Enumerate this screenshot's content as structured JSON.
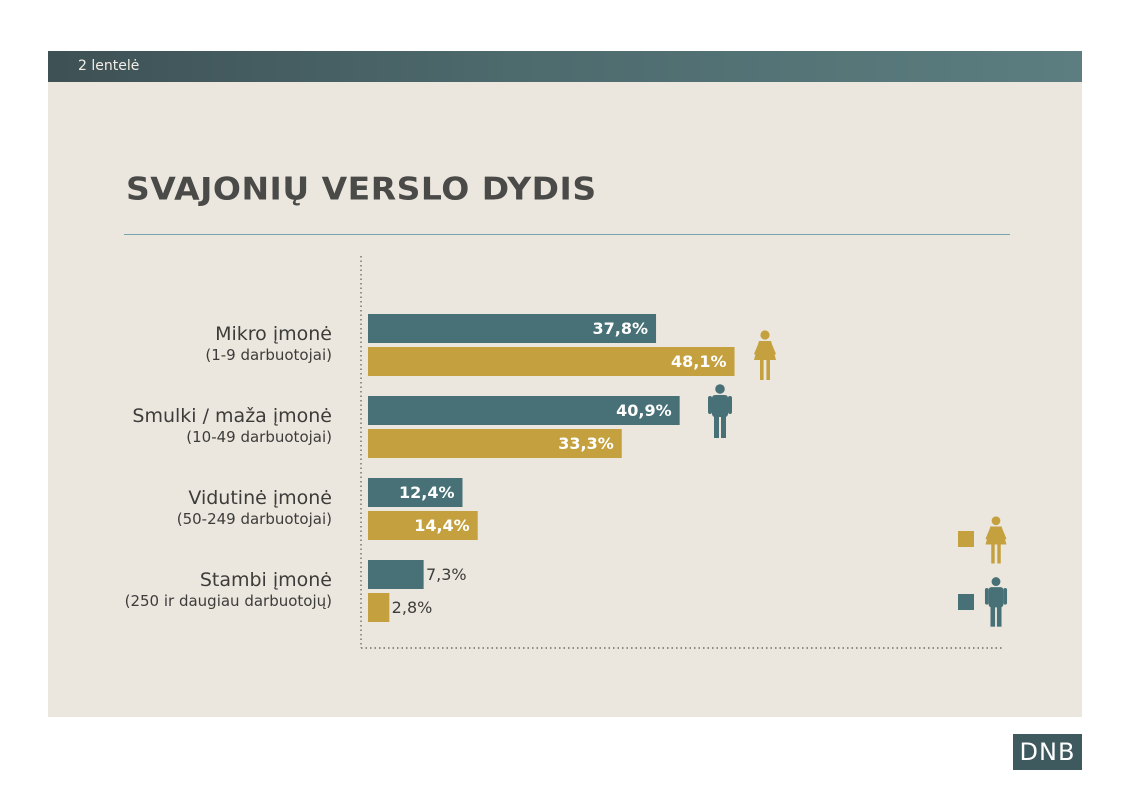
{
  "header": {
    "label": "2 lentelė"
  },
  "footer": {
    "logo_text": "DNB"
  },
  "colors": {
    "male": "#477177",
    "female": "#c4a13e"
  },
  "chart_data": {
    "type": "bar",
    "orientation": "horizontal",
    "title": "SVAJONIŲ VERSLO DYDIS",
    "categories": [
      {
        "name": "Mikro įmonė",
        "sub": "(1-9 darbuotojai)"
      },
      {
        "name": "Smulki / maža įmonė",
        "sub": "(10-49 darbuotojai)"
      },
      {
        "name": "Vidutinė įmonė",
        "sub": "(50-249 darbuotojai)"
      },
      {
        "name": "Stambi  įmonė",
        "sub": "(250 ir daugiau darbuotojų)"
      }
    ],
    "series": [
      {
        "key": "male",
        "values": [
          37.8,
          40.9,
          12.4,
          7.3
        ],
        "labels": [
          "37,8%",
          "40,9%",
          "12,4%",
          "7,3%"
        ]
      },
      {
        "key": "female",
        "values": [
          48.1,
          33.3,
          14.4,
          2.8
        ],
        "labels": [
          "48,1%",
          "33,3%",
          "14,4%",
          "2,8%"
        ]
      }
    ],
    "xlim": [
      0,
      100
    ],
    "legend": {
      "placement": "bottom-right",
      "items": [
        "female-icon",
        "male-icon"
      ]
    },
    "grid": false
  }
}
